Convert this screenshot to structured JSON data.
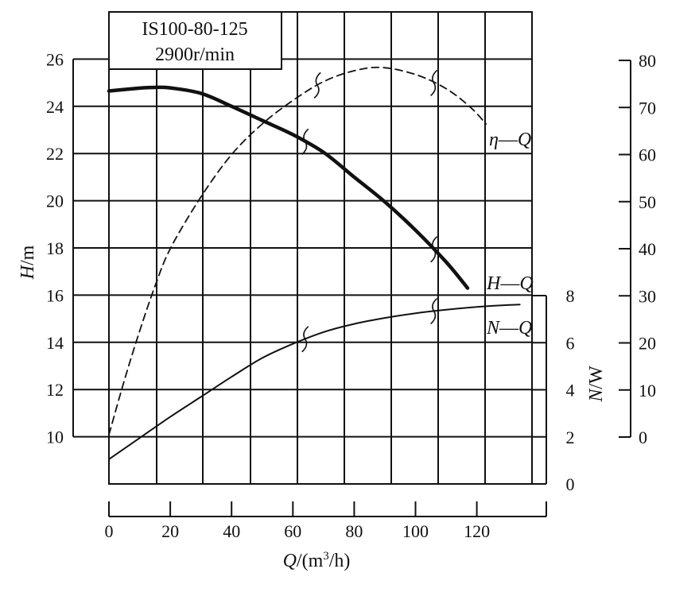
{
  "chart_data": {
    "type": "line",
    "title_lines": [
      "IS100-80-125",
      "2900r/min"
    ],
    "xlabel": {
      "italic": "Q",
      "rest": "/(m",
      "sup": "3",
      "end": "/h)"
    },
    "ylabel_left": {
      "italic": "H",
      "rest": "/m"
    },
    "ylabel_n": {
      "italic": "N",
      "rest": "/W"
    },
    "xlim": [
      0,
      138
    ],
    "x_ticks": [
      "0",
      "20",
      "40",
      "60",
      "80",
      "100",
      "120"
    ],
    "x_tick_values": [
      0,
      20,
      40,
      60,
      80,
      100,
      120
    ],
    "ylim_h": [
      8,
      28
    ],
    "h_ticks": [
      "10",
      "12",
      "14",
      "16",
      "18",
      "20",
      "22",
      "24",
      "26"
    ],
    "h_tick_values": [
      10,
      12,
      14,
      16,
      18,
      20,
      22,
      24,
      26
    ],
    "eta_ticks": [
      "0",
      "10",
      "20",
      "30",
      "40",
      "50",
      "60",
      "70",
      "80"
    ],
    "eta_tick_values": [
      0,
      10,
      20,
      30,
      40,
      50,
      60,
      70,
      80
    ],
    "n_ticks": [
      "0",
      "2",
      "4",
      "6",
      "8"
    ],
    "n_tick_values": [
      0,
      2,
      4,
      6,
      8
    ],
    "grid": true,
    "series": [
      {
        "name": "H—Q",
        "label": {
          "a": "H",
          "dash": "—",
          "b": "Q"
        },
        "axis": "H",
        "style": "bold",
        "x": [
          0,
          10,
          15,
          20,
          30,
          40,
          50,
          60,
          70,
          80,
          90,
          100,
          110,
          117
        ],
        "y": [
          24.65,
          24.77,
          24.8,
          24.78,
          24.55,
          24.0,
          23.4,
          22.8,
          22.05,
          21.0,
          19.95,
          18.75,
          17.4,
          16.3
        ],
        "break_marks_x": [
          64,
          106
        ]
      },
      {
        "name": "η—Q",
        "label": {
          "a": "η",
          "dash": "—",
          "b": "Q"
        },
        "axis": "eta",
        "style": "dashed",
        "x": [
          0,
          5,
          10,
          15,
          20,
          30,
          40,
          50,
          60,
          70,
          80,
          89,
          100,
          110,
          118,
          123
        ],
        "y": [
          0.5,
          12,
          22.5,
          32,
          40,
          51,
          60,
          66.5,
          71.5,
          75.5,
          77.8,
          78.5,
          77.0,
          74.0,
          70.0,
          66.5
        ],
        "break_marks_x": [
          68,
          106
        ]
      },
      {
        "name": "N—Q",
        "label": {
          "a": "N",
          "dash": "—",
          "b": "Q"
        },
        "axis": "N",
        "style": "thin",
        "x": [
          0,
          10,
          20,
          30,
          40,
          50,
          60,
          70,
          80,
          90,
          100,
          110,
          120,
          130,
          134
        ],
        "y": [
          1.05,
          1.95,
          2.85,
          3.7,
          4.55,
          5.35,
          5.95,
          6.45,
          6.8,
          7.05,
          7.25,
          7.4,
          7.52,
          7.6,
          7.62
        ],
        "break_marks_x": [
          64,
          106
        ]
      }
    ]
  }
}
